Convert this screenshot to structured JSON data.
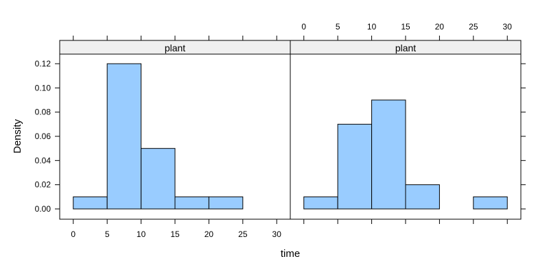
{
  "chart_data": {
    "type": "bar",
    "subtype": "histogram",
    "xlabel": "time",
    "ylabel": "Density",
    "xlim": [
      -2,
      32
    ],
    "ylim": [
      -0.0075,
      0.1275
    ],
    "xticks": [
      0,
      5,
      10,
      15,
      20,
      25,
      30
    ],
    "yticks": [
      0.0,
      0.02,
      0.04,
      0.06,
      0.08,
      0.1,
      0.12
    ],
    "ytick_labels": [
      "0.00",
      "0.02",
      "0.04",
      "0.06",
      "0.08",
      "0.10",
      "0.12"
    ],
    "bin_edges": [
      0,
      5,
      10,
      15,
      20,
      25,
      30
    ],
    "bar_color": "#99CCFF",
    "strip_color": "#F0F0F0",
    "grid": false,
    "panels": [
      {
        "strip_label": "plant",
        "values": [
          0.01,
          0.12,
          0.05,
          0.01,
          0.01,
          0.0
        ]
      },
      {
        "strip_label": "plant",
        "values": [
          0.01,
          0.07,
          0.09,
          0.02,
          0.0,
          0.01
        ]
      }
    ]
  }
}
